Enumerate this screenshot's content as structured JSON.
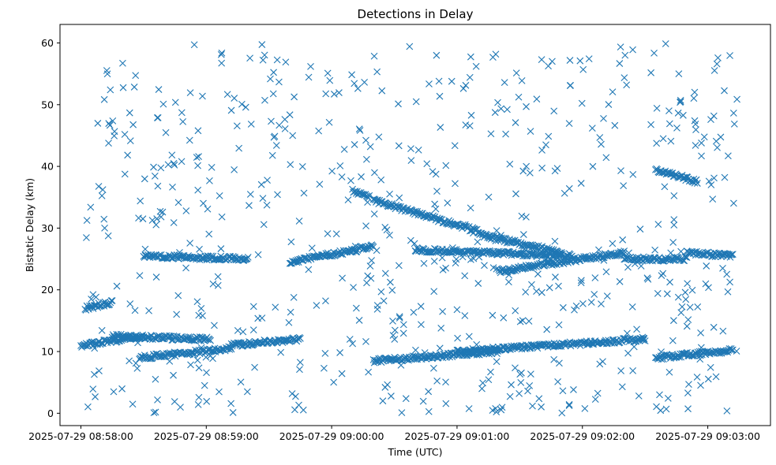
{
  "chart_data": {
    "type": "scatter",
    "title": "Detections in Delay",
    "xlabel": "Time (UTC)",
    "ylabel": "Bistatic Delay (km)",
    "marker": "x",
    "color": "#1f77b4",
    "grid": false,
    "xlim": [
      "2025-07-29 08:57:50",
      "2025-07-29 09:03:30"
    ],
    "ylim": [
      -2,
      63
    ],
    "x_ticks": [
      "2025-07-29 08:58:00",
      "2025-07-29 08:59:00",
      "2025-07-29 09:00:00",
      "2025-07-29 09:01:00",
      "2025-07-29 09:02:00",
      "2025-07-29 09:03:00"
    ],
    "y_ticks": [
      0,
      10,
      20,
      30,
      40,
      50,
      60
    ],
    "tracks": [
      {
        "start": "2025-07-29 08:58:02",
        "end": "2025-07-29 08:58:15",
        "delay_start": 17.0,
        "delay_end": 18.0
      },
      {
        "start": "2025-07-29 08:58:00",
        "end": "2025-07-29 08:58:30",
        "delay_start": 11.0,
        "delay_end": 12.5
      },
      {
        "start": "2025-07-29 08:58:15",
        "end": "2025-07-29 08:59:02",
        "delay_start": 12.5,
        "delay_end": 12.0
      },
      {
        "start": "2025-07-29 08:58:28",
        "end": "2025-07-29 08:59:12",
        "delay_start": 9.0,
        "delay_end": 10.5
      },
      {
        "start": "2025-07-29 08:59:12",
        "end": "2025-07-29 08:59:45",
        "delay_start": 11.0,
        "delay_end": 12.0
      },
      {
        "start": "2025-07-29 09:00:10",
        "end": "2025-07-29 09:00:18",
        "delay_start": 36.0,
        "delay_end": 35.0
      },
      {
        "start": "2025-07-29 09:00:20",
        "end": "2025-07-29 09:01:10",
        "delay_start": 34.5,
        "delay_end": 29.5
      },
      {
        "start": "2025-07-29 09:01:10",
        "end": "2025-07-29 09:01:50",
        "delay_start": 29.0,
        "delay_end": 26.0
      },
      {
        "start": "2025-07-29 09:00:40",
        "end": "2025-07-29 09:01:55",
        "delay_start": 26.5,
        "delay_end": 25.5
      },
      {
        "start": "2025-07-29 09:01:20",
        "end": "2025-07-29 09:02:20",
        "delay_start": 23.0,
        "delay_end": 26.0
      },
      {
        "start": "2025-07-29 09:02:20",
        "end": "2025-07-29 09:02:50",
        "delay_start": 25.0,
        "delay_end": 25.0
      },
      {
        "start": "2025-07-29 09:02:50",
        "end": "2025-07-29 09:03:12",
        "delay_start": 26.0,
        "delay_end": 25.5
      },
      {
        "start": "2025-07-29 09:00:20",
        "end": "2025-07-29 09:01:20",
        "delay_start": 8.5,
        "delay_end": 10.0
      },
      {
        "start": "2025-07-29 09:01:00",
        "end": "2025-07-29 09:02:30",
        "delay_start": 10.0,
        "delay_end": 12.0
      },
      {
        "start": "2025-07-29 09:02:35",
        "end": "2025-07-29 09:03:12",
        "delay_start": 9.0,
        "delay_end": 10.2
      },
      {
        "start": "2025-07-29 09:02:35",
        "end": "2025-07-29 09:02:55",
        "delay_start": 39.5,
        "delay_end": 37.5
      },
      {
        "start": "2025-07-29 08:59:40",
        "end": "2025-07-29 09:00:20",
        "delay_start": 24.5,
        "delay_end": 27.0
      },
      {
        "start": "2025-07-29 08:58:30",
        "end": "2025-07-29 08:59:20",
        "delay_start": 25.5,
        "delay_end": 25.0
      }
    ],
    "clutter": {
      "count": 650,
      "x_range": [
        "2025-07-29 08:58:02",
        "2025-07-29 09:03:14"
      ],
      "y_range": [
        0,
        60
      ]
    }
  }
}
